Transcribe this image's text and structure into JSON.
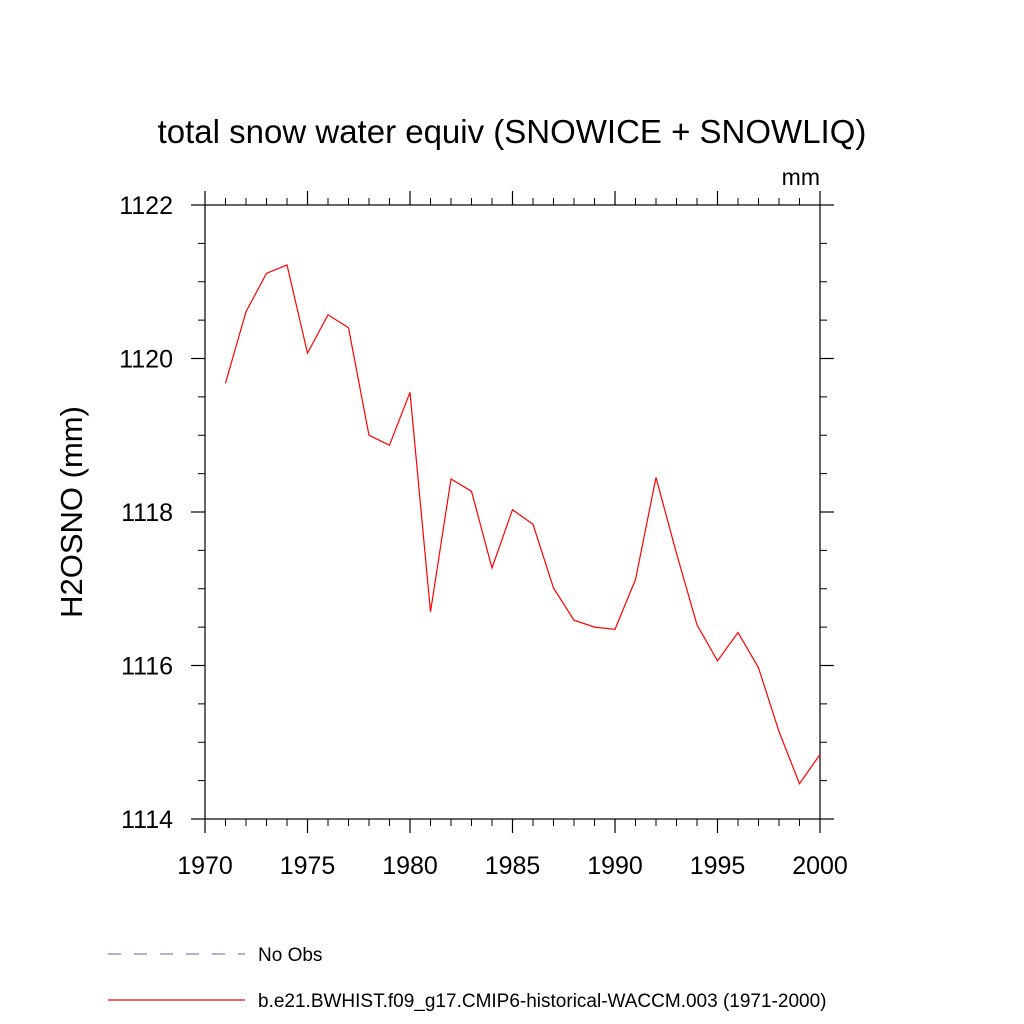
{
  "chart_data": {
    "type": "line",
    "title": "total snow water equiv (SNOWICE + SNOWLIQ)",
    "units_label": "mm",
    "xlabel": "",
    "ylabel": "H2OSNO  (mm)",
    "xlim": [
      1970,
      2000
    ],
    "ylim": [
      1114,
      1122
    ],
    "x_ticks": [
      1970,
      1975,
      1980,
      1985,
      1990,
      1995,
      2000
    ],
    "y_ticks": [
      1114,
      1116,
      1118,
      1120,
      1122
    ],
    "grid": false,
    "legend_placement": "bottom-left",
    "series": [
      {
        "name": "b.e21.BWHIST.f09_g17.CMIP6-historical-WACCM.003 (1971-2000)",
        "color": "#ff0000",
        "style": "solid",
        "x": [
          1971,
          1972,
          1973,
          1974,
          1975,
          1976,
          1977,
          1978,
          1979,
          1980,
          1981,
          1982,
          1983,
          1984,
          1985,
          1986,
          1987,
          1988,
          1989,
          1990,
          1991,
          1992,
          1993,
          1994,
          1995,
          1996,
          1997,
          1998,
          1999,
          2000
        ],
        "y": [
          1119.68,
          1120.61,
          1121.11,
          1121.22,
          1120.07,
          1120.57,
          1120.4,
          1119.0,
          1118.87,
          1119.56,
          1116.7,
          1118.43,
          1118.27,
          1117.27,
          1118.03,
          1117.84,
          1117.01,
          1116.59,
          1116.5,
          1116.47,
          1117.12,
          1118.45,
          1117.46,
          1116.53,
          1116.06,
          1116.43,
          1115.97,
          1115.14,
          1114.46,
          1114.84
        ]
      }
    ],
    "legend": [
      {
        "label": "No Obs",
        "color": "#8080c0",
        "style": "dashed"
      },
      {
        "label": "b.e21.BWHIST.f09_g17.CMIP6-historical-WACCM.003 (1971-2000)",
        "color": "#ff0000",
        "style": "solid"
      }
    ]
  }
}
